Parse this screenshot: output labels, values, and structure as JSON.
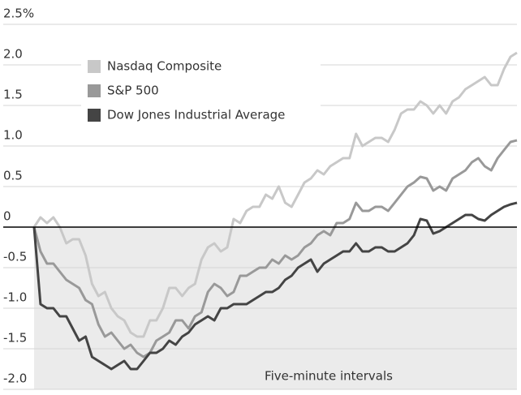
{
  "chart_data": {
    "type": "line",
    "annotation": "Five-minute intervals",
    "ylim": [
      -2.0,
      2.5
    ],
    "yticks": [
      {
        "value": 2.5,
        "label": "2.5%"
      },
      {
        "value": 2,
        "label": "2.0"
      },
      1.5,
      {
        "value": 1,
        "label": "1.0"
      },
      0.5,
      0,
      -0.5,
      {
        "value": -1,
        "label": "-1.0"
      },
      -1.5,
      {
        "value": -2,
        "label": "-2.0"
      }
    ],
    "grid": true,
    "legend": "top-left",
    "series": [
      {
        "name": "Nasdaq Composite",
        "color": "#c8c8c8",
        "values": [
          0,
          0.12,
          0.05,
          0.12,
          0,
          -0.2,
          -0.15,
          -0.15,
          -0.35,
          -0.7,
          -0.85,
          -0.8,
          -1.0,
          -1.1,
          -1.15,
          -1.3,
          -1.35,
          -1.35,
          -1.15,
          -1.15,
          -1.0,
          -0.75,
          -0.75,
          -0.85,
          -0.75,
          -0.7,
          -0.4,
          -0.25,
          -0.2,
          -0.3,
          -0.25,
          0.1,
          0.05,
          0.2,
          0.25,
          0.25,
          0.4,
          0.35,
          0.5,
          0.3,
          0.25,
          0.4,
          0.55,
          0.6,
          0.7,
          0.65,
          0.75,
          0.8,
          0.85,
          0.85,
          1.15,
          1.0,
          1.05,
          1.1,
          1.1,
          1.05,
          1.2,
          1.4,
          1.45,
          1.45,
          1.55,
          1.5,
          1.4,
          1.5,
          1.4,
          1.55,
          1.6,
          1.7,
          1.75,
          1.8,
          1.85,
          1.75,
          1.75,
          1.95,
          2.1,
          2.15
        ]
      },
      {
        "name": "S&P 500",
        "color": "#999999",
        "values": [
          0,
          -0.3,
          -0.45,
          -0.45,
          -0.55,
          -0.65,
          -0.7,
          -0.75,
          -0.9,
          -0.95,
          -1.2,
          -1.35,
          -1.3,
          -1.4,
          -1.5,
          -1.45,
          -1.55,
          -1.6,
          -1.55,
          -1.4,
          -1.35,
          -1.3,
          -1.15,
          -1.15,
          -1.25,
          -1.1,
          -1.05,
          -0.8,
          -0.7,
          -0.75,
          -0.85,
          -0.8,
          -0.6,
          -0.6,
          -0.55,
          -0.5,
          -0.5,
          -0.4,
          -0.45,
          -0.35,
          -0.4,
          -0.35,
          -0.25,
          -0.2,
          -0.1,
          -0.05,
          -0.1,
          0.05,
          0.05,
          0.1,
          0.3,
          0.2,
          0.2,
          0.25,
          0.25,
          0.2,
          0.3,
          0.4,
          0.5,
          0.55,
          0.62,
          0.6,
          0.45,
          0.5,
          0.45,
          0.6,
          0.65,
          0.7,
          0.8,
          0.85,
          0.75,
          0.7,
          0.85,
          0.95,
          1.05,
          1.07
        ]
      },
      {
        "name": "Dow Jones Industrial Average",
        "color": "#444444",
        "values": [
          0,
          -0.95,
          -1.0,
          -1.0,
          -1.1,
          -1.1,
          -1.25,
          -1.4,
          -1.35,
          -1.6,
          -1.65,
          -1.7,
          -1.75,
          -1.7,
          -1.65,
          -1.75,
          -1.75,
          -1.65,
          -1.55,
          -1.55,
          -1.5,
          -1.4,
          -1.45,
          -1.35,
          -1.3,
          -1.2,
          -1.15,
          -1.1,
          -1.15,
          -1.0,
          -1.0,
          -0.95,
          -0.95,
          -0.95,
          -0.9,
          -0.85,
          -0.8,
          -0.8,
          -0.75,
          -0.65,
          -0.6,
          -0.5,
          -0.45,
          -0.4,
          -0.55,
          -0.45,
          -0.4,
          -0.35,
          -0.3,
          -0.3,
          -0.2,
          -0.3,
          -0.3,
          -0.25,
          -0.25,
          -0.3,
          -0.3,
          -0.25,
          -0.2,
          -0.1,
          0.1,
          0.08,
          -0.08,
          -0.05,
          0,
          0.05,
          0.1,
          0.15,
          0.15,
          0.1,
          0.08,
          0.15,
          0.2,
          0.25,
          0.28,
          0.3
        ]
      }
    ]
  }
}
